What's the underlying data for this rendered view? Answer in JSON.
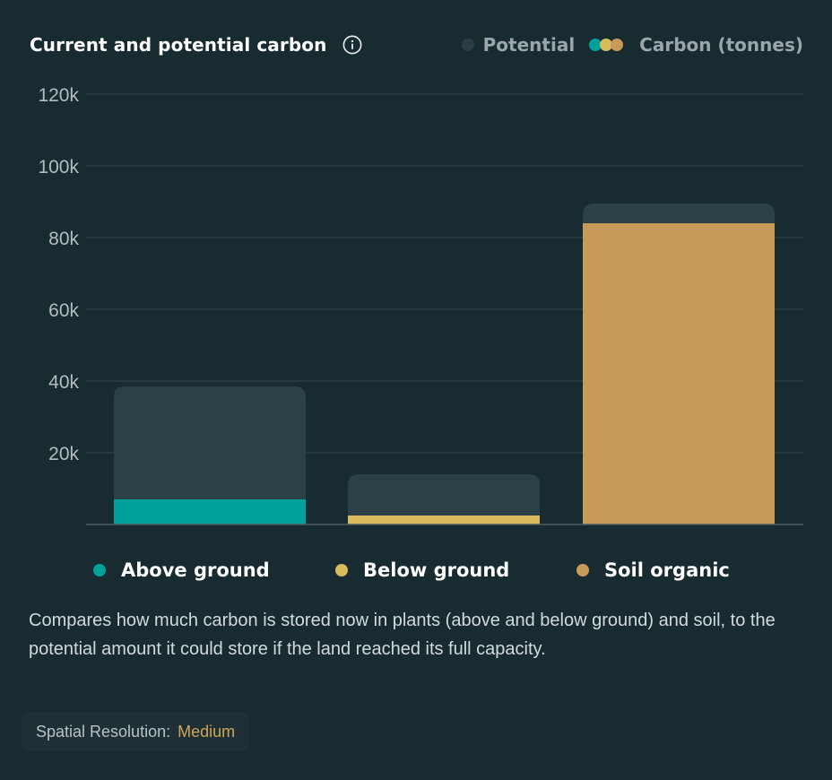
{
  "header": {
    "title": "Current and potential carbon",
    "info_icon": "info-icon"
  },
  "legend_top": {
    "potential_label": "Potential",
    "carbon_label": "Carbon (tonnes)"
  },
  "colors": {
    "background": "#182b31",
    "potential": "#2c4147",
    "above_ground": "#00a19a",
    "below_ground": "#d8bb5c",
    "soil_organic": "#c89a5a",
    "grid": "#34474d"
  },
  "chart_data": {
    "type": "bar",
    "categories": [
      "Above ground",
      "Below ground",
      "Soil organic"
    ],
    "series": [
      {
        "name": "Potential",
        "values": [
          38500,
          14000,
          89500
        ]
      },
      {
        "name": "Carbon (tonnes)",
        "values": [
          7000,
          2500,
          84000
        ]
      }
    ],
    "ylim": [
      0,
      120000
    ],
    "y_ticks": [
      20000,
      40000,
      60000,
      80000,
      100000,
      120000
    ],
    "y_tick_labels": [
      "20k",
      "40k",
      "60k",
      "80k",
      "100k",
      "120k"
    ],
    "grid": true,
    "legend_position": "top-right"
  },
  "bottom_legend": {
    "items": [
      {
        "label": "Above ground",
        "color": "#00a19a"
      },
      {
        "label": "Below ground",
        "color": "#d8bb5c"
      },
      {
        "label": "Soil organic",
        "color": "#c89a5a"
      }
    ]
  },
  "description": "Compares how much carbon is stored now in plants (above and below ground) and soil, to the potential amount it could store if the land reached its full capacity.",
  "badge": {
    "key": "Spatial Resolution:",
    "value": "Medium"
  }
}
